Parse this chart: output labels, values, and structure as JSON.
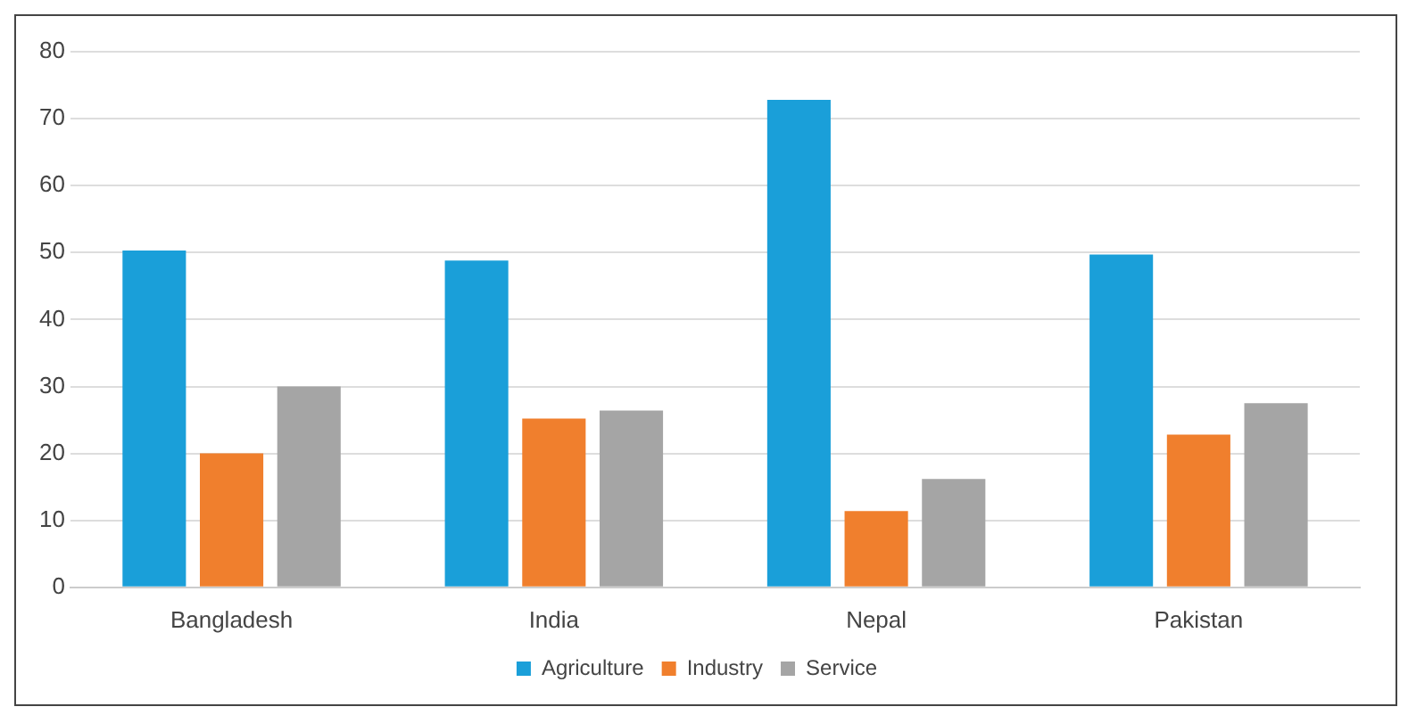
{
  "chart_data": {
    "type": "bar",
    "categories": [
      "Bangladesh",
      "India",
      "Nepal",
      "Pakistan"
    ],
    "series": [
      {
        "name": "Agriculture",
        "color": "#1a9fd9",
        "values": [
          50.3,
          48.8,
          72.8,
          49.7
        ]
      },
      {
        "name": "Industry",
        "color": "#f07f2d",
        "values": [
          20,
          25.2,
          11.4,
          22.8
        ]
      },
      {
        "name": "Service",
        "color": "#a5a5a5",
        "values": [
          30,
          26.4,
          16.2,
          27.5
        ]
      }
    ],
    "ylim": [
      0,
      80
    ],
    "yticks": [
      0,
      10,
      20,
      30,
      40,
      50,
      60,
      70,
      80
    ],
    "grid": "y",
    "legend": "bottom"
  }
}
